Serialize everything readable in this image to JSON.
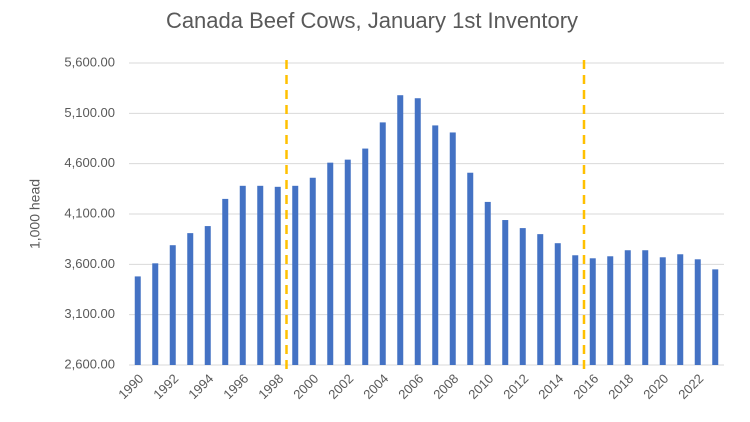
{
  "chart_data": {
    "type": "bar",
    "title": "Canada Beef Cows, January 1st Inventory",
    "y_label": "1,000 head",
    "categories": [
      "1990",
      null,
      "1992",
      null,
      "1994",
      null,
      "1996",
      null,
      "1998",
      null,
      "2000",
      null,
      "2002",
      null,
      "2004",
      null,
      "2006",
      null,
      "2008",
      null,
      "2010",
      null,
      "2012",
      null,
      "2014",
      null,
      "2016",
      null,
      "2018",
      null,
      "2020",
      null,
      "2022",
      null
    ],
    "values": [
      3480,
      3610,
      3790,
      3910,
      3980,
      4250,
      4380,
      4380,
      4370,
      4380,
      4460,
      4610,
      4640,
      4750,
      5010,
      5280,
      5250,
      4980,
      4910,
      4510,
      4220,
      4040,
      3960,
      3900,
      3810,
      3690,
      3660,
      3680,
      3740,
      3740,
      3670,
      3700,
      3650,
      3550
    ],
    "color": "#4472c4",
    "ylim": [
      2600,
      5600
    ],
    "yticks": [
      {
        "value": 2600,
        "label": "2,600.00"
      },
      {
        "value": 3100,
        "label": "3,100.00"
      },
      {
        "value": 3600,
        "label": "3,600.00"
      },
      {
        "value": 4100,
        "label": "4,100.00"
      },
      {
        "value": 4600,
        "label": "4,600.00"
      },
      {
        "value": 5100,
        "label": "5,100.00"
      },
      {
        "value": 5600,
        "label": "5,600.00"
      }
    ],
    "grid": true
  }
}
